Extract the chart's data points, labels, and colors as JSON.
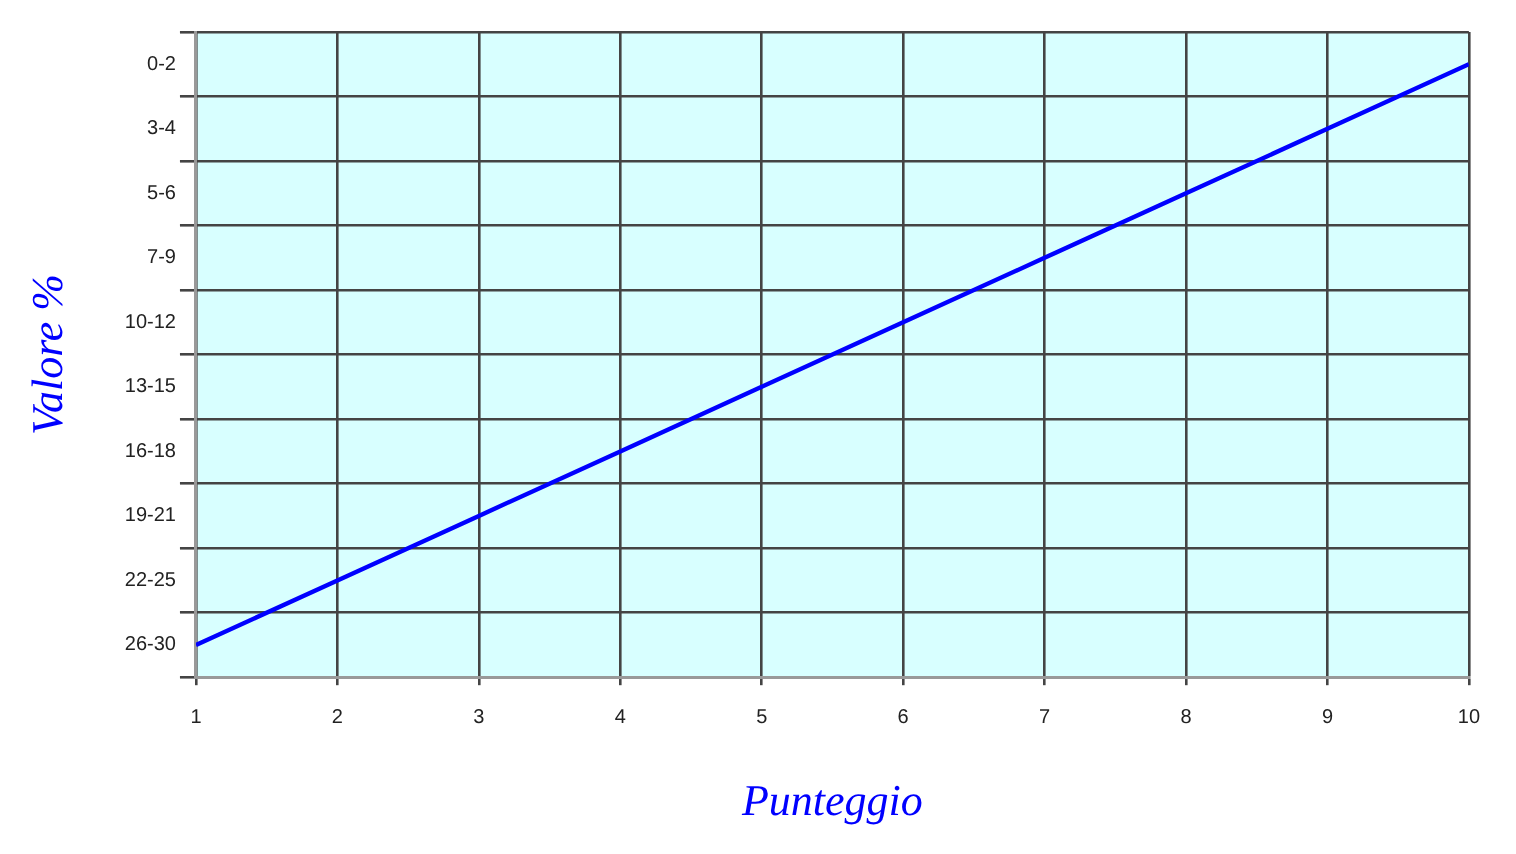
{
  "chart_data": {
    "type": "line",
    "orientation": "horizontal",
    "xlabel": "Punteggio",
    "ylabel": "Valore %",
    "categories": [
      "0-2",
      "3-4",
      "5-6",
      "7-9",
      "10-12",
      "13-15",
      "16-18",
      "19-21",
      "22-25",
      "26-30"
    ],
    "series": [
      {
        "color": "#0000ff",
        "values": [
          10,
          9,
          8,
          7,
          6,
          5,
          4,
          3,
          2,
          1
        ]
      }
    ],
    "xlim": [
      1,
      10
    ],
    "xticks": [
      1,
      2,
      3,
      4,
      5,
      6,
      7,
      8,
      9,
      10
    ],
    "grid": true,
    "legend": false,
    "marker": "none",
    "line_style": "solid"
  }
}
